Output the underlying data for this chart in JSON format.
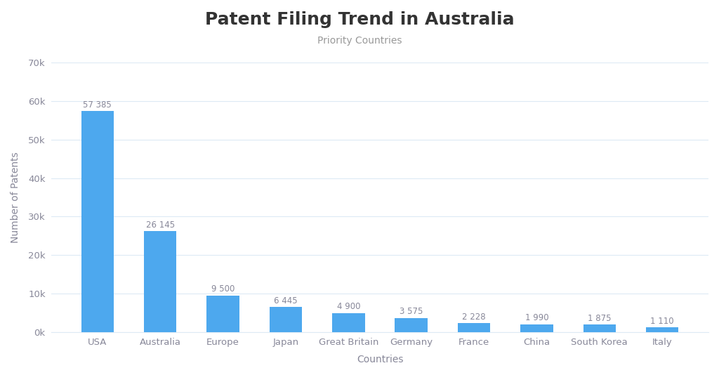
{
  "title": "Patent Filing Trend in Australia",
  "subtitle": "Priority Countries",
  "xlabel": "Countries",
  "ylabel": "Number of Patents",
  "categories": [
    "USA",
    "Australia",
    "Europe",
    "Japan",
    "Great Britain",
    "Germany",
    "France",
    "China",
    "South Korea",
    "Italy"
  ],
  "values": [
    57385,
    26145,
    9500,
    6445,
    4900,
    3575,
    2228,
    1990,
    1875,
    1110
  ],
  "labels": [
    "57 385",
    "26 145",
    "9 500",
    "6 445",
    "4 900",
    "3 575",
    "2 228",
    "1 990",
    "1 875",
    "1 110"
  ],
  "bar_color": "#4DA8EE",
  "background_color": "#FFFFFF",
  "grid_color": "#DDEAF5",
  "text_color": "#888899",
  "title_color": "#333333",
  "subtitle_color": "#999999",
  "ylim": [
    0,
    70000
  ],
  "yticks": [
    0,
    10000,
    20000,
    30000,
    40000,
    50000,
    60000,
    70000
  ],
  "ytick_labels": [
    "0k",
    "10k",
    "20k",
    "30k",
    "40k",
    "50k",
    "60k",
    "70k"
  ],
  "title_fontsize": 18,
  "subtitle_fontsize": 10,
  "label_fontsize": 8.5,
  "axis_label_fontsize": 10,
  "tick_fontsize": 9.5,
  "bar_width": 0.52
}
